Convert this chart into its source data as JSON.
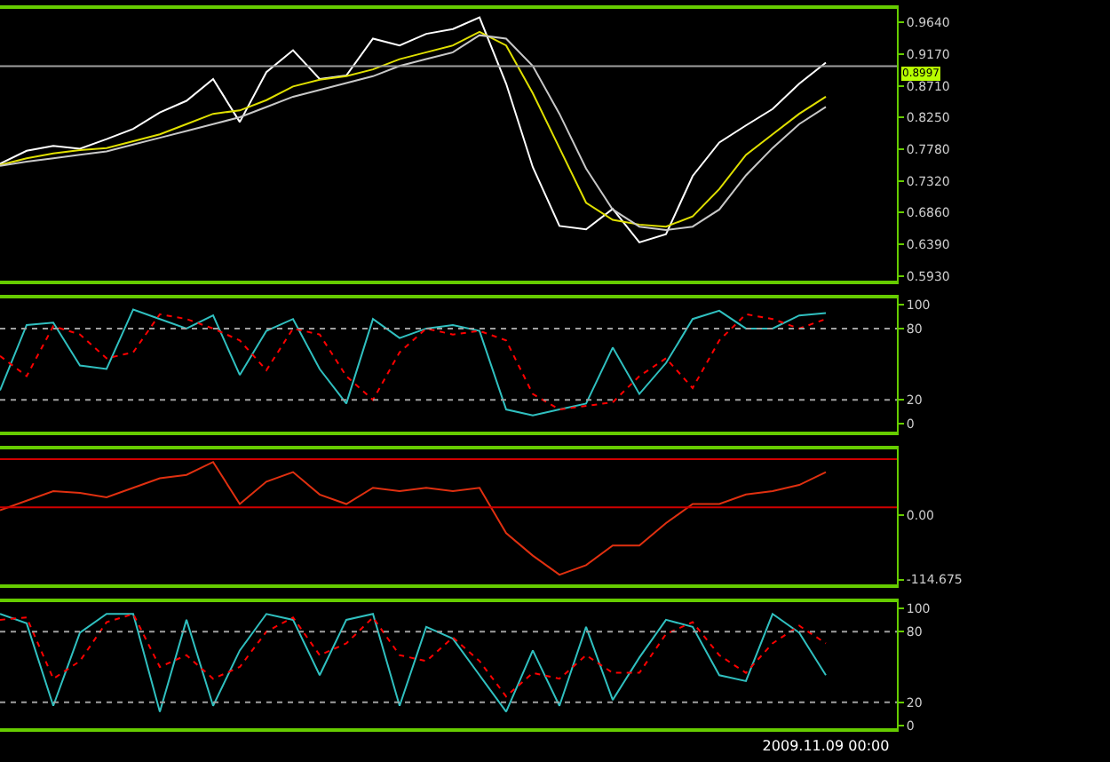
{
  "chart_data": [
    {
      "type": "line",
      "categories": [
        null,
        null,
        null,
        null,
        null,
        null,
        null,
        null,
        null,
        null,
        null,
        null,
        null,
        null,
        null,
        null,
        null,
        null,
        null,
        null,
        null,
        null,
        null,
        null,
        null,
        null,
        null,
        null,
        null,
        null,
        null,
        null
      ],
      "series": [
        {
          "color": "#ffffff",
          "values": [
            0.757,
            0.776,
            0.783,
            0.779,
            0.793,
            0.808,
            0.832,
            0.849,
            0.881,
            0.818,
            0.891,
            0.923,
            0.881,
            0.886,
            0.94,
            0.93,
            0.947,
            0.954,
            0.971,
            0.874,
            0.752,
            0.666,
            0.661,
            0.691,
            0.642,
            0.654,
            0.739,
            0.788,
            0.813,
            0.837,
            0.874,
            0.905
          ]
        },
        {
          "color": "#e0e000",
          "values": [
            0.755,
            0.765,
            0.772,
            0.777,
            0.78,
            0.79,
            0.8,
            0.815,
            0.83,
            0.835,
            0.85,
            0.87,
            0.88,
            0.885,
            0.895,
            0.91,
            0.92,
            0.93,
            0.95,
            0.93,
            0.86,
            0.78,
            0.7,
            0.675,
            0.668,
            0.665,
            0.68,
            0.72,
            0.77,
            0.8,
            0.83,
            0.855
          ]
        },
        {
          "color": "#c8c8c8",
          "values": [
            0.754,
            0.76,
            0.765,
            0.77,
            0.775,
            0.785,
            0.795,
            0.805,
            0.815,
            0.825,
            0.84,
            0.855,
            0.865,
            0.875,
            0.885,
            0.9,
            0.91,
            0.92,
            0.945,
            0.94,
            0.9,
            0.83,
            0.75,
            0.69,
            0.665,
            0.66,
            0.665,
            0.69,
            0.74,
            0.78,
            0.815,
            0.84
          ]
        }
      ],
      "ylim": [
        0.586,
        0.9835
      ],
      "yticks": [
        {
          "value": 0.593,
          "label": "0.5930"
        },
        {
          "value": 0.639,
          "label": "0.6390"
        },
        {
          "value": 0.686,
          "label": "0.6860"
        },
        {
          "value": 0.732,
          "label": "0.7320"
        },
        {
          "value": 0.778,
          "label": "0.7780"
        },
        {
          "value": 0.825,
          "label": "0.8250"
        },
        {
          "value": 0.871,
          "label": "0.8710"
        },
        {
          "value": 0.917,
          "label": "0.9170"
        },
        {
          "value": 0.964,
          "label": "0.9640"
        }
      ],
      "ref_lines": [
        {
          "axis": "y",
          "value": 0.8997,
          "label": "0.8997",
          "color": "#a0a0a0"
        }
      ],
      "tick_labels": "y"
    },
    {
      "type": "line",
      "categories": [
        null,
        null,
        null,
        null,
        null,
        null,
        null,
        null,
        null,
        null,
        null,
        null,
        null,
        null,
        null,
        null,
        null,
        null,
        null,
        null,
        null,
        null,
        null,
        null,
        null,
        null,
        null,
        null,
        null,
        null,
        null,
        null
      ],
      "series": [
        {
          "color": "#30c0c0",
          "values": [
            28,
            83,
            85,
            49,
            46,
            96,
            88,
            80,
            91,
            41,
            78,
            88,
            46,
            17,
            88,
            72,
            80,
            83,
            78,
            12,
            7,
            12,
            17,
            64,
            25,
            51,
            88,
            95,
            80,
            80,
            91,
            93
          ]
        },
        {
          "color": "#ff0000",
          "line_style": "dotted",
          "values": [
            57,
            40,
            82,
            75,
            55,
            60,
            92,
            88,
            80,
            70,
            45,
            80,
            75,
            40,
            20,
            60,
            80,
            75,
            78,
            70,
            25,
            12,
            15,
            18,
            40,
            55,
            30,
            70,
            92,
            88,
            80,
            88
          ]
        }
      ],
      "ylim": [
        -6.6,
        105.3
      ],
      "yticks": [
        0,
        20,
        80,
        100
      ],
      "ref_lines": [
        {
          "axis": "y",
          "value": 80,
          "color": "#a0a0a0",
          "line_style": "dotted"
        },
        {
          "axis": "y",
          "value": 20,
          "color": "#a0a0a0",
          "line_style": "dotted"
        }
      ],
      "tick_labels": "y"
    },
    {
      "type": "line",
      "categories": [
        null,
        null,
        null,
        null,
        null,
        null,
        null,
        null,
        null,
        null,
        null,
        null,
        null,
        null,
        null,
        null,
        null,
        null,
        null,
        null,
        null,
        null,
        null,
        null,
        null,
        null,
        null,
        null,
        null,
        null,
        null,
        null
      ],
      "series": [
        {
          "color": "#e03010",
          "values": [
            9,
            26,
            43,
            40,
            32,
            49,
            66,
            72,
            95,
            20,
            60,
            77,
            37,
            20,
            49,
            43,
            49,
            43,
            49,
            -32,
            -72,
            -106,
            -89,
            -54,
            -54,
            -14,
            20,
            20,
            37,
            43,
            54,
            77
          ]
        }
      ],
      "ylim": [
        -123.3,
        117.5
      ],
      "yticks": [
        {
          "value": 0,
          "label": "0.00"
        },
        -114.675
      ],
      "ref_lines": [
        {
          "axis": "y",
          "value": 100,
          "color": "#d00000"
        },
        {
          "axis": "y",
          "value": 14,
          "color": "#d00000"
        }
      ],
      "tick_labels": "y"
    },
    {
      "type": "line",
      "categories": [
        null,
        null,
        null,
        null,
        null,
        null,
        null,
        null,
        null,
        null,
        null,
        null,
        null,
        null,
        null,
        null,
        null,
        null,
        null,
        null,
        null,
        null,
        null,
        null,
        null,
        null,
        null,
        null,
        null,
        null,
        null,
        "2009.11.09 00:00"
      ],
      "series": [
        {
          "color": "#30c0c0",
          "values": [
            95,
            87,
            17,
            79,
            95,
            95,
            12,
            90,
            17,
            64,
            95,
            90,
            43,
            90,
            95,
            17,
            84,
            74,
            43,
            12,
            64,
            17,
            84,
            22,
            58,
            90,
            84,
            43,
            38,
            95,
            79,
            43
          ]
        },
        {
          "color": "#ff0000",
          "line_style": "dotted",
          "values": [
            90,
            92,
            40,
            55,
            88,
            95,
            50,
            60,
            40,
            50,
            80,
            92,
            60,
            70,
            92,
            60,
            55,
            75,
            55,
            25,
            45,
            40,
            60,
            45,
            45,
            78,
            88,
            60,
            45,
            70,
            85,
            70
          ]
        }
      ],
      "ylim": [
        -2,
        105
      ],
      "yticks": [
        0,
        20,
        80,
        100
      ],
      "ref_lines": [
        {
          "axis": "y",
          "value": 80,
          "color": "#a0a0a0",
          "line_style": "dotted"
        },
        {
          "axis": "y",
          "value": 20,
          "color": "#a0a0a0",
          "line_style": "dotted"
        }
      ],
      "grid": false
    }
  ]
}
